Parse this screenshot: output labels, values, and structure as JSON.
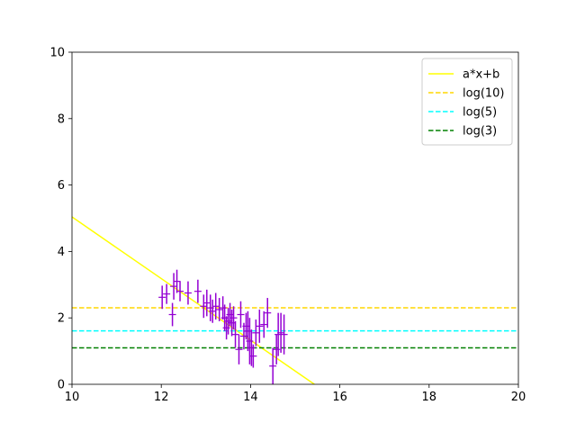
{
  "chart_data": {
    "type": "scatter",
    "title": "",
    "xlabel": "",
    "ylabel": "",
    "xlim": [
      10,
      20
    ],
    "ylim": [
      0,
      10
    ],
    "xticks": [
      "10",
      "12",
      "14",
      "16",
      "18",
      "20"
    ],
    "yticks": [
      "0",
      "2",
      "4",
      "6",
      "8",
      "10"
    ],
    "grid": false,
    "legend_position": "top-right",
    "series": [
      {
        "name": "a*x+b",
        "kind": "line",
        "color": "#ffff00",
        "dash": "solid",
        "x": [
          10,
          15.43
        ],
        "y": [
          5.04,
          0
        ]
      },
      {
        "name": "log(10)",
        "kind": "hline",
        "color": "#ffd700",
        "dash": "dashed",
        "y": 2.303
      },
      {
        "name": "log(5)",
        "kind": "hline",
        "color": "#00ffff",
        "dash": "dashed",
        "y": 1.609
      },
      {
        "name": "log(3)",
        "kind": "hline",
        "color": "#008000",
        "dash": "dashed",
        "y": 1.099
      },
      {
        "kind": "errorbar",
        "color": "#9400d3",
        "points": [
          {
            "x": 12.02,
            "y": 2.62,
            "yerr": 0.35
          },
          {
            "x": 12.12,
            "y": 2.72,
            "yerr": 0.3
          },
          {
            "x": 12.25,
            "y": 2.1,
            "yerr": 0.35
          },
          {
            "x": 12.28,
            "y": 2.95,
            "yerr": 0.4
          },
          {
            "x": 12.35,
            "y": 3.1,
            "yerr": 0.35
          },
          {
            "x": 12.42,
            "y": 2.8,
            "yerr": 0.3
          },
          {
            "x": 12.6,
            "y": 2.75,
            "yerr": 0.35
          },
          {
            "x": 12.82,
            "y": 2.8,
            "yerr": 0.35
          },
          {
            "x": 12.95,
            "y": 2.35,
            "yerr": 0.35
          },
          {
            "x": 13.02,
            "y": 2.45,
            "yerr": 0.4
          },
          {
            "x": 13.1,
            "y": 2.3,
            "yerr": 0.4
          },
          {
            "x": 13.15,
            "y": 2.2,
            "yerr": 0.35
          },
          {
            "x": 13.22,
            "y": 2.35,
            "yerr": 0.4
          },
          {
            "x": 13.3,
            "y": 2.25,
            "yerr": 0.35
          },
          {
            "x": 13.38,
            "y": 2.3,
            "yerr": 0.35
          },
          {
            "x": 13.42,
            "y": 2.0,
            "yerr": 0.4
          },
          {
            "x": 13.46,
            "y": 1.7,
            "yerr": 0.35
          },
          {
            "x": 13.5,
            "y": 1.9,
            "yerr": 0.4
          },
          {
            "x": 13.54,
            "y": 2.1,
            "yerr": 0.35
          },
          {
            "x": 13.58,
            "y": 1.85,
            "yerr": 0.4
          },
          {
            "x": 13.62,
            "y": 2.0,
            "yerr": 0.35
          },
          {
            "x": 13.66,
            "y": 1.5,
            "yerr": 0.4
          },
          {
            "x": 13.74,
            "y": 1.05,
            "yerr": 0.45
          },
          {
            "x": 13.78,
            "y": 2.1,
            "yerr": 0.4
          },
          {
            "x": 13.85,
            "y": 1.45,
            "yerr": 0.4
          },
          {
            "x": 13.9,
            "y": 1.75,
            "yerr": 0.4
          },
          {
            "x": 13.94,
            "y": 1.6,
            "yerr": 0.6
          },
          {
            "x": 13.98,
            "y": 1.3,
            "yerr": 0.7
          },
          {
            "x": 14.02,
            "y": 1.1,
            "yerr": 0.55
          },
          {
            "x": 14.06,
            "y": 0.85,
            "yerr": 0.35
          },
          {
            "x": 14.12,
            "y": 1.55,
            "yerr": 0.4
          },
          {
            "x": 14.2,
            "y": 1.75,
            "yerr": 0.5
          },
          {
            "x": 14.3,
            "y": 1.8,
            "yerr": 0.4
          },
          {
            "x": 14.38,
            "y": 2.15,
            "yerr": 0.45
          },
          {
            "x": 14.5,
            "y": 0.55,
            "yerr": 0.55
          },
          {
            "x": 14.58,
            "y": 1.05,
            "yerr": 0.45
          },
          {
            "x": 14.62,
            "y": 1.5,
            "yerr": 0.65
          },
          {
            "x": 14.68,
            "y": 1.55,
            "yerr": 0.6
          },
          {
            "x": 14.75,
            "y": 1.5,
            "yerr": 0.6
          }
        ]
      }
    ]
  }
}
